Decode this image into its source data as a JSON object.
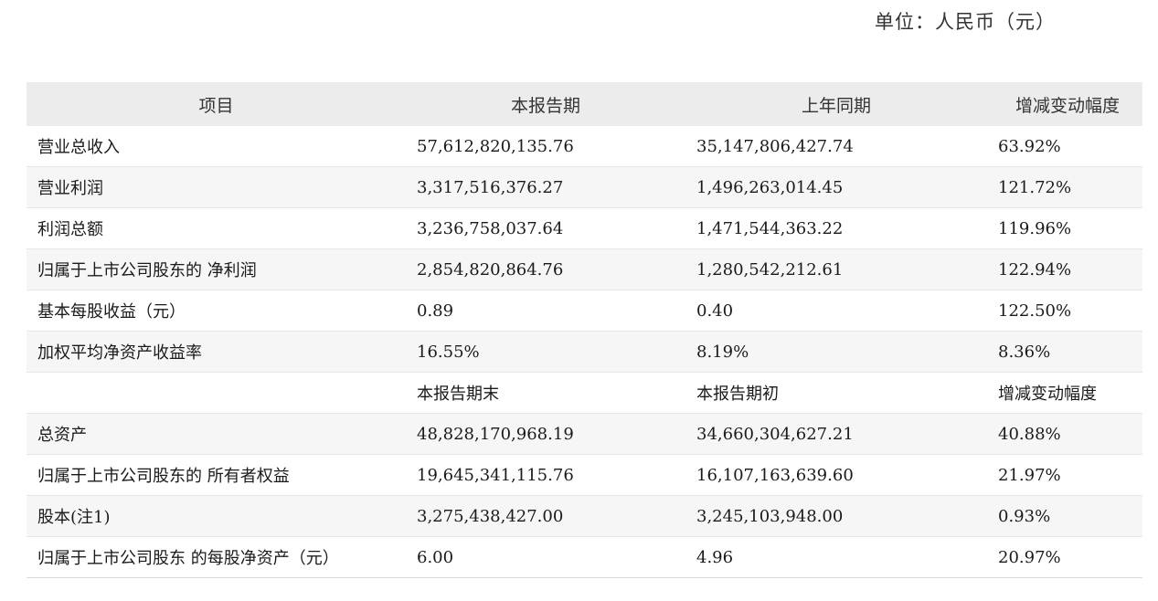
{
  "unit_note": "单位：人民币（元）",
  "header": {
    "item": "项目",
    "current": "本报告期",
    "prior": "上年同期",
    "change": "增减变动幅度"
  },
  "rows": [
    {
      "label": "营业总收入",
      "current": "57,612,820,135.76",
      "prior": "35,147,806,427.74",
      "change": "63.92%"
    },
    {
      "label": "营业利润",
      "current": "3,317,516,376.27",
      "prior": "1,496,263,014.45",
      "change": "121.72%"
    },
    {
      "label": "利润总额",
      "current": "3,236,758,037.64",
      "prior": "1,471,544,363.22",
      "change": "119.96%"
    },
    {
      "label": "归属于上市公司股东的 净利润",
      "current": "2,854,820,864.76",
      "prior": "1,280,542,212.61",
      "change": "122.94%"
    },
    {
      "label": "基本每股收益（元）",
      "current": "0.89",
      "prior": "0.40",
      "change": "122.50%"
    },
    {
      "label": "加权平均净资产收益率",
      "current": "16.55%",
      "prior": "8.19%",
      "change": "8.36%"
    },
    {
      "label": "",
      "current": "本报告期末",
      "prior": "本报告期初",
      "change": "增减变动幅度"
    },
    {
      "label": "总资产",
      "current": "48,828,170,968.19",
      "prior": "34,660,304,627.21",
      "change": "40.88%"
    },
    {
      "label": "归属于上市公司股东的 所有者权益",
      "current": "19,645,341,115.76",
      "prior": "16,107,163,639.60",
      "change": "21.97%"
    },
    {
      "label": "股本(注1)",
      "current": "3,275,438,427.00",
      "prior": "3,245,103,948.00",
      "change": "0.93%"
    },
    {
      "label": "归属于上市公司股东 的每股净资产（元）",
      "current": "6.00",
      "prior": "4.96",
      "change": "20.97%"
    }
  ]
}
